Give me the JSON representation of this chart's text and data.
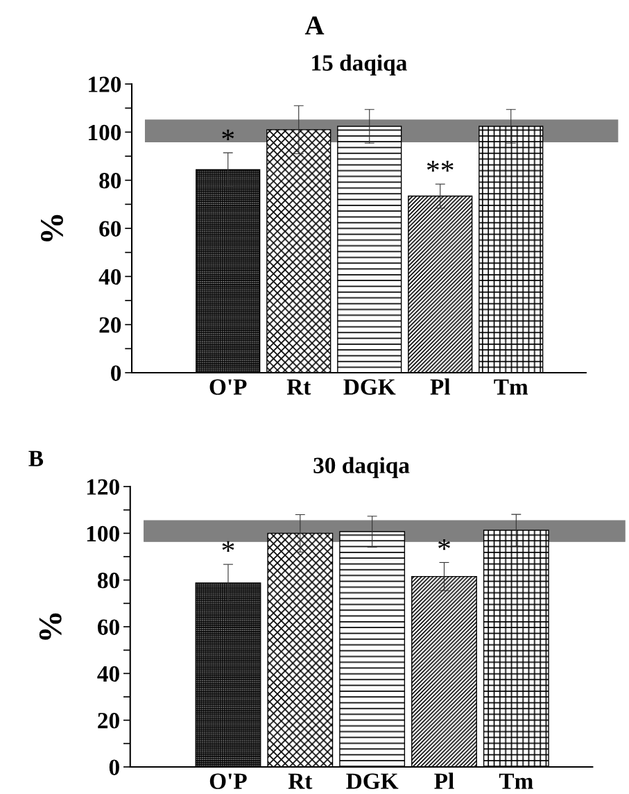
{
  "chart_data": [
    {
      "type": "bar",
      "title": "15 daqiqa",
      "ylabel": "%",
      "categories": [
        "O'P",
        "Rt",
        "DGK",
        "Pl",
        "Tm"
      ],
      "values": [
        84.4,
        101,
        102.4,
        73.4,
        102.4
      ],
      "errors": [
        7,
        10,
        7,
        5,
        7
      ],
      "ylim": [
        0,
        120
      ],
      "yticks": [
        0,
        {
          "value": 10,
          "label": null
        },
        20,
        {
          "value": 30,
          "label": null
        },
        40,
        {
          "value": 50,
          "label": null
        },
        60,
        {
          "value": 70,
          "label": null
        },
        80,
        {
          "value": 90,
          "label": null
        },
        100,
        {
          "value": 110,
          "label": null
        },
        120
      ],
      "bands": [
        {
          "axis": "y",
          "from": 96,
          "to": 105,
          "color": "#808080"
        }
      ],
      "annotations": [
        "A",
        {
          "text": "*",
          "x": "O'P",
          "y": 91.4
        },
        {
          "text": "**",
          "x": "Pl",
          "y": 78.4
        }
      ]
    },
    {
      "type": "bar",
      "title": "30 daqiqa",
      "ylabel": "%",
      "categories": [
        "O'P",
        "Rt",
        "DGK",
        "Pl",
        "Tm"
      ],
      "values": [
        78.7,
        100,
        100.7,
        81.5,
        101.3
      ],
      "errors": [
        8,
        8,
        6.6,
        6,
        6.8
      ],
      "ylim": [
        0,
        120
      ],
      "yticks": [
        0,
        {
          "value": 10,
          "label": null
        },
        20,
        {
          "value": 30,
          "label": null
        },
        40,
        {
          "value": 50,
          "label": null
        },
        60,
        {
          "value": 70,
          "label": null
        },
        80,
        {
          "value": 90,
          "label": null
        },
        100,
        {
          "value": 110,
          "label": null
        },
        120
      ],
      "bands": [
        {
          "axis": "y",
          "from": 96.5,
          "to": 105.4,
          "color": "#808080"
        }
      ],
      "annotations": [
        "B",
        {
          "text": "*",
          "x": "O'P",
          "y": 86.7
        },
        {
          "text": "*",
          "x": "Pl",
          "y": 87.5
        }
      ]
    }
  ]
}
